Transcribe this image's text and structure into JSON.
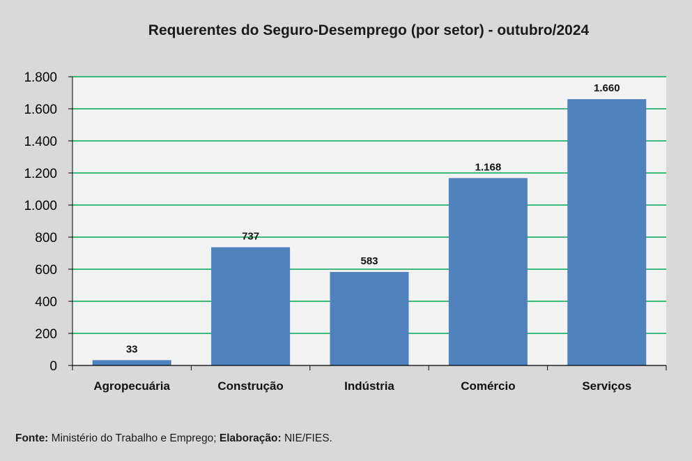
{
  "chart_data": {
    "type": "bar",
    "title": "Requerentes do Seguro-Desemprego (por setor) - outubro/2024",
    "categories": [
      "Agropecuária",
      "Construção",
      "Indústria",
      "Comércio",
      "Serviços"
    ],
    "values": [
      33,
      737,
      583,
      1168,
      1660
    ],
    "value_labels": [
      "33",
      "737",
      "583",
      "1.168",
      "1.660"
    ],
    "ylim": [
      0,
      1800
    ],
    "yticks": [
      0,
      200,
      400,
      600,
      800,
      1000,
      1200,
      1400,
      1600,
      1800
    ],
    "ytick_labels": [
      "0",
      "200",
      "400",
      "600",
      "800",
      "1.000",
      "1.200",
      "1.400",
      "1.600",
      "1.800"
    ],
    "grid": true,
    "bar_color": "#4f81bd",
    "grid_color": "#00a650",
    "plot_background": "#f2f2f2"
  },
  "footer": {
    "source_label": "Fonte:",
    "source_text": " Ministério do Trabalho e Emprego; ",
    "elaboration_label": "Elaboração:",
    "elaboration_text": " NIE/FIES."
  }
}
